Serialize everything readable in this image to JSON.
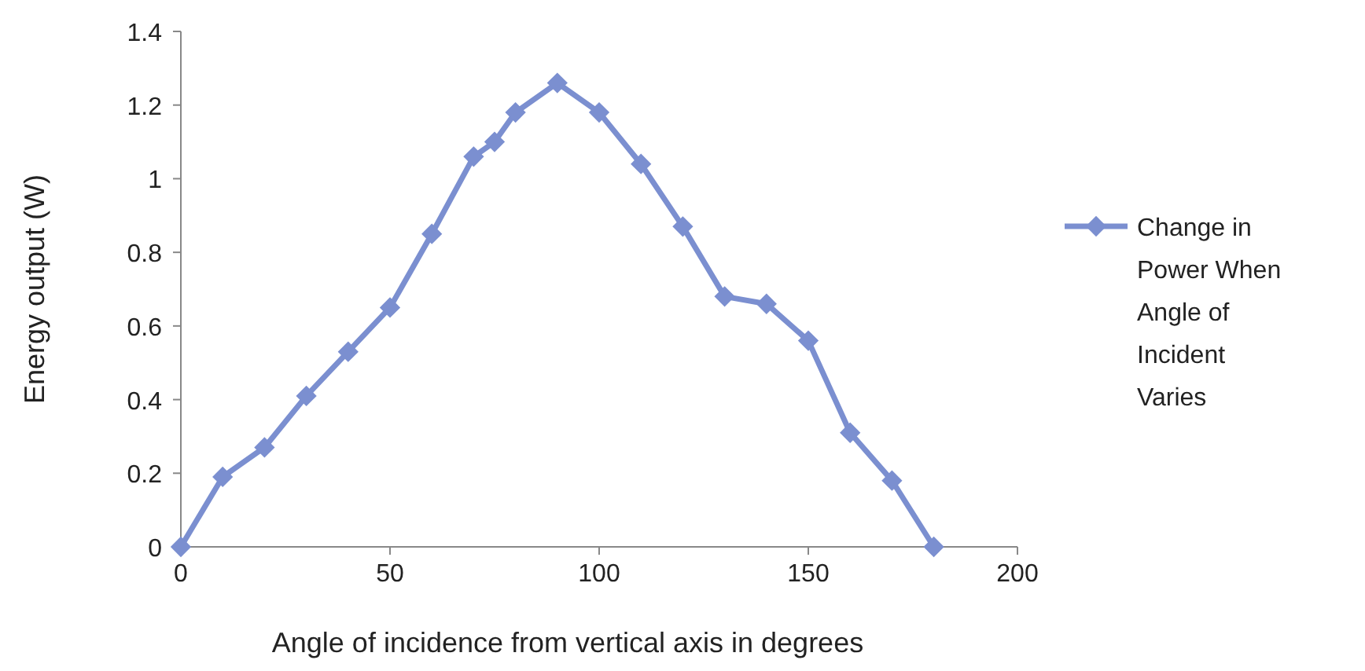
{
  "chart_data": {
    "type": "line",
    "xlabel": "Angle of incidence from vertical axis in degrees",
    "ylabel": "Energy output (W)",
    "x": [
      0,
      10,
      20,
      30,
      40,
      50,
      60,
      70,
      75,
      80,
      90,
      100,
      110,
      120,
      130,
      140,
      150,
      160,
      170,
      180
    ],
    "series": [
      {
        "name": "Change in Power When Angle of Incident Varies",
        "color": "#7b8fd0",
        "values": [
          0,
          0.19,
          0.27,
          0.41,
          0.53,
          0.65,
          0.85,
          1.06,
          1.1,
          1.18,
          1.26,
          1.18,
          1.04,
          0.87,
          0.68,
          0.66,
          0.56,
          0.31,
          0.18,
          0
        ]
      }
    ],
    "xlim": [
      0,
      200
    ],
    "xticks": [
      0,
      50,
      100,
      150,
      200
    ],
    "ylim": [
      0,
      1.4
    ],
    "yticks": [
      0,
      0.2,
      0.4,
      0.6,
      0.8,
      1,
      1.2,
      1.4
    ],
    "marker": "diamond",
    "line_style": "solid",
    "legend": "right",
    "grid": false
  }
}
